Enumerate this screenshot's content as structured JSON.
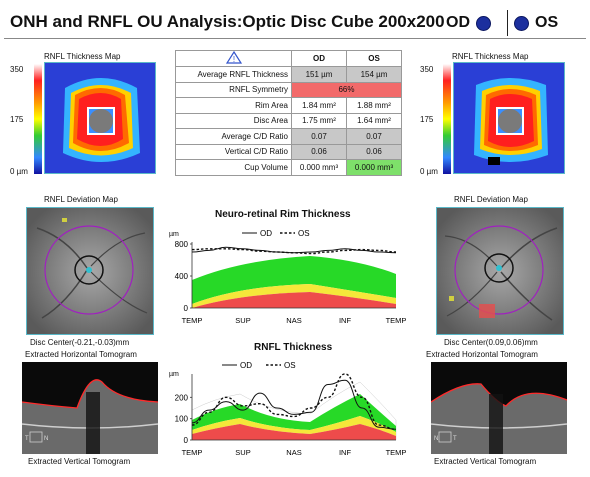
{
  "header": {
    "title": "ONH and RNFL OU Analysis:Optic Disc Cube 200x200",
    "od_label": "OD",
    "os_label": "OS"
  },
  "od": {
    "thickness_map_title": "RNFL Thickness Map",
    "scale_max": "350",
    "scale_mid": "175",
    "scale_min": "0 µm",
    "deviation_map_title": "RNFL Deviation Map",
    "disc_center": "Disc Center(-0.21,-0.03)mm",
    "horizontal_tomogram": "Extracted Horizontal Tomogram",
    "vertical_tomogram": "Extracted Vertical Tomogram",
    "tomogram_marker_left": "T",
    "tomogram_marker_right": "N"
  },
  "os": {
    "thickness_map_title": "RNFL Thickness Map",
    "scale_max": "350",
    "scale_mid": "175",
    "scale_min": "0 µm",
    "deviation_map_title": "RNFL Deviation Map",
    "disc_center": "Disc Center(0.09,0.06)mm",
    "horizontal_tomogram": "Extracted Horizontal Tomogram",
    "vertical_tomogram": "Extracted Vertical Tomogram",
    "tomogram_marker_left": "N",
    "tomogram_marker_right": "T"
  },
  "metrics": {
    "warning_icon": "warning-triangle-icon",
    "col_od": "OD",
    "col_os": "OS",
    "rows": [
      {
        "label": "Average RNFL Thickness",
        "od": "151 µm",
        "os": "154 µm",
        "od_status": "gray",
        "os_status": "gray"
      },
      {
        "label": "RNFL Symmetry",
        "merged": "66%",
        "status": "red"
      },
      {
        "label": "Rim Area",
        "od": "1.84 mm²",
        "os": "1.88 mm²",
        "od_status": "white",
        "os_status": "white"
      },
      {
        "label": "Disc Area",
        "od": "1.75 mm²",
        "os": "1.64 mm²",
        "od_status": "white",
        "os_status": "white"
      },
      {
        "label": "Average C/D Ratio",
        "od": "0.07",
        "os": "0.07",
        "od_status": "gray",
        "os_status": "gray"
      },
      {
        "label": "Vertical C/D Ratio",
        "od": "0.06",
        "os": "0.06",
        "od_status": "gray",
        "os_status": "gray"
      },
      {
        "label": "Cup Volume",
        "od": "0.000 mm³",
        "os": "0.000 mm³",
        "od_status": "white",
        "os_status": "green"
      }
    ]
  },
  "chart_data": [
    {
      "type": "line",
      "title": "Neuro-retinal Rim Thickness",
      "ylabel": "µm",
      "ylim": [
        0,
        800
      ],
      "yticks": [
        "800",
        "400",
        "0"
      ],
      "x_ticks": [
        "TEMP",
        "SUP",
        "NAS",
        "INF",
        "TEMP"
      ],
      "x": [
        0,
        30,
        60,
        90,
        120,
        150,
        180,
        210,
        240,
        270,
        300,
        330,
        360
      ],
      "series": [
        {
          "name": "OD",
          "values": [
            700,
            720,
            760,
            740,
            720,
            700,
            690,
            700,
            720,
            740,
            720,
            700,
            690
          ]
        },
        {
          "name": "OS",
          "values": [
            730,
            740,
            740,
            730,
            710,
            700,
            690,
            680,
            700,
            720,
            730,
            720,
            700
          ]
        }
      ],
      "legend": "top-center"
    },
    {
      "type": "line",
      "title": "RNFL Thickness",
      "ylabel": "µm",
      "ylim": [
        0,
        300
      ],
      "yticks": [
        "200",
        "100",
        "0"
      ],
      "x_ticks": [
        "TEMP",
        "SUP",
        "NAS",
        "INF",
        "TEMP"
      ],
      "x": [
        0,
        30,
        60,
        90,
        120,
        150,
        180,
        210,
        240,
        270,
        300,
        330,
        360
      ],
      "series": [
        {
          "name": "OD",
          "values": [
            80,
            140,
            180,
            140,
            220,
            150,
            120,
            130,
            260,
            280,
            150,
            60,
            50
          ]
        },
        {
          "name": "OS",
          "values": [
            70,
            130,
            200,
            160,
            170,
            120,
            110,
            150,
            200,
            310,
            200,
            70,
            50
          ]
        }
      ],
      "legend": "top-center"
    }
  ]
}
